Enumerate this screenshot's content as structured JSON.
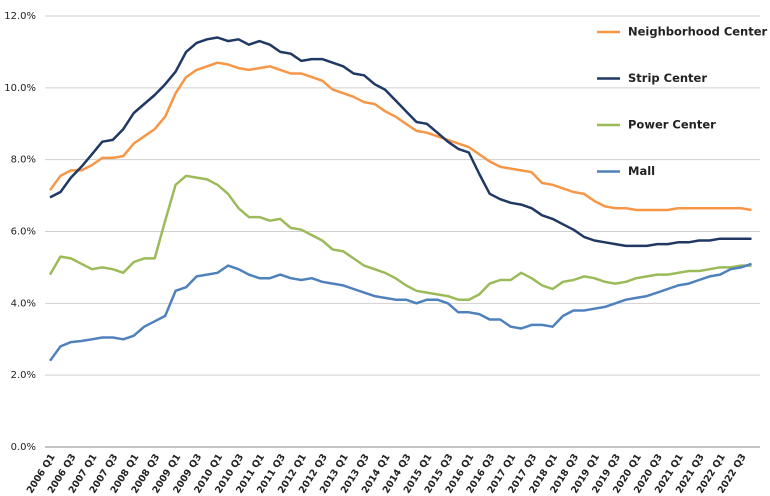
{
  "chart_data": {
    "type": "line",
    "categories": [
      "2006 Q1",
      null,
      "2006 Q3",
      null,
      "2007 Q1",
      null,
      "2007 Q3",
      null,
      "2008 Q1",
      null,
      "2008 Q3",
      null,
      "2009 Q1",
      null,
      "2009 Q3",
      null,
      "2010 Q1",
      null,
      "2010 Q3",
      null,
      "2011 Q1",
      null,
      "2011 Q3",
      null,
      "2012 Q1",
      null,
      "2012 Q3",
      null,
      "2013 Q1",
      null,
      "2013 Q3",
      null,
      "2014 Q1",
      null,
      "2014 Q3",
      null,
      "2015 Q1",
      null,
      "2015 Q3",
      null,
      "2016 Q1",
      null,
      "2016 Q3",
      null,
      "2017 Q1",
      null,
      "2017 Q3",
      null,
      "2018 Q1",
      null,
      "2018 Q3",
      null,
      "2019 Q1",
      null,
      "2019 Q3",
      null,
      "2020 Q1",
      null,
      "2020 Q3",
      null,
      "2021 Q1",
      null,
      "2021 Q3",
      null,
      "2022 Q1",
      null,
      "2022 Q3",
      null
    ],
    "series": [
      {
        "name": "Neighborhood Center",
        "color": "#f79646",
        "values": [
          7.15,
          7.55,
          7.7,
          7.7,
          7.85,
          8.05,
          8.05,
          8.1,
          8.45,
          8.65,
          8.85,
          9.2,
          9.85,
          10.3,
          10.5,
          10.6,
          10.7,
          10.65,
          10.55,
          10.5,
          10.55,
          10.6,
          10.5,
          10.4,
          10.4,
          10.3,
          10.2,
          9.95,
          9.85,
          9.75,
          9.6,
          9.55,
          9.35,
          9.2,
          9.0,
          8.8,
          8.75,
          8.65,
          8.55,
          8.45,
          8.35,
          8.15,
          7.95,
          7.8,
          7.75,
          7.7,
          7.65,
          7.35,
          7.3,
          7.2,
          7.1,
          7.05,
          6.85,
          6.7,
          6.65,
          6.65,
          6.6,
          6.6,
          6.6,
          6.6,
          6.65,
          6.65,
          6.65,
          6.65,
          6.65,
          6.65,
          6.65,
          6.6
        ]
      },
      {
        "name": "Strip Center",
        "color": "#1f3864",
        "values": [
          6.95,
          7.1,
          7.5,
          7.8,
          8.15,
          8.5,
          8.55,
          8.85,
          9.3,
          9.55,
          9.8,
          10.1,
          10.45,
          11.0,
          11.25,
          11.35,
          11.4,
          11.3,
          11.35,
          11.2,
          11.3,
          11.2,
          11.0,
          10.95,
          10.75,
          10.8,
          10.8,
          10.7,
          10.6,
          10.4,
          10.35,
          10.1,
          9.95,
          9.65,
          9.35,
          9.05,
          9.0,
          8.75,
          8.5,
          8.3,
          8.2,
          7.6,
          7.05,
          6.9,
          6.8,
          6.75,
          6.65,
          6.45,
          6.35,
          6.2,
          6.05,
          5.85,
          5.75,
          5.7,
          5.65,
          5.6,
          5.6,
          5.6,
          5.65,
          5.65,
          5.7,
          5.7,
          5.75,
          5.75,
          5.8,
          5.8,
          5.8,
          5.8
        ]
      },
      {
        "name": "Power Center",
        "color": "#9bbb59",
        "values": [
          4.8,
          5.3,
          5.25,
          5.1,
          4.95,
          5.0,
          4.95,
          4.85,
          5.15,
          5.25,
          5.25,
          6.3,
          7.3,
          7.55,
          7.5,
          7.45,
          7.3,
          7.05,
          6.65,
          6.4,
          6.4,
          6.3,
          6.35,
          6.1,
          6.05,
          5.9,
          5.75,
          5.5,
          5.45,
          5.25,
          5.05,
          4.95,
          4.85,
          4.7,
          4.5,
          4.35,
          4.3,
          4.25,
          4.2,
          4.1,
          4.1,
          4.25,
          4.55,
          4.65,
          4.65,
          4.85,
          4.7,
          4.5,
          4.4,
          4.6,
          4.65,
          4.75,
          4.7,
          4.6,
          4.55,
          4.6,
          4.7,
          4.75,
          4.8,
          4.8,
          4.85,
          4.9,
          4.9,
          4.95,
          5.0,
          5.0,
          5.05,
          5.05
        ]
      },
      {
        "name": "Mall",
        "color": "#4f81bd",
        "values": [
          2.4,
          2.8,
          2.92,
          2.95,
          3.0,
          3.05,
          3.05,
          3.0,
          3.1,
          3.35,
          3.5,
          3.65,
          4.35,
          4.45,
          4.75,
          4.8,
          4.85,
          5.05,
          4.95,
          4.8,
          4.7,
          4.7,
          4.8,
          4.7,
          4.65,
          4.7,
          4.6,
          4.55,
          4.5,
          4.4,
          4.3,
          4.2,
          4.15,
          4.1,
          4.1,
          4.0,
          4.1,
          4.1,
          4.0,
          3.75,
          3.75,
          3.7,
          3.55,
          3.55,
          3.35,
          3.3,
          3.4,
          3.4,
          3.35,
          3.65,
          3.8,
          3.8,
          3.85,
          3.9,
          4.0,
          4.1,
          4.15,
          4.2,
          4.3,
          4.4,
          4.5,
          4.55,
          4.65,
          4.75,
          4.8,
          4.95,
          5.0,
          5.1
        ]
      }
    ],
    "ylim": [
      0,
      12
    ],
    "yticks": [
      {
        "value": 0,
        "label": "0.0%"
      },
      {
        "value": 2,
        "label": "2.0%"
      },
      {
        "value": 4,
        "label": "4.0%"
      },
      {
        "value": 6,
        "label": "6.0%"
      },
      {
        "value": 8,
        "label": "8.0%"
      },
      {
        "value": 10,
        "label": "10.0%"
      },
      {
        "value": 12,
        "label": "12.0%"
      }
    ],
    "grid": true,
    "legend": "upper right"
  }
}
